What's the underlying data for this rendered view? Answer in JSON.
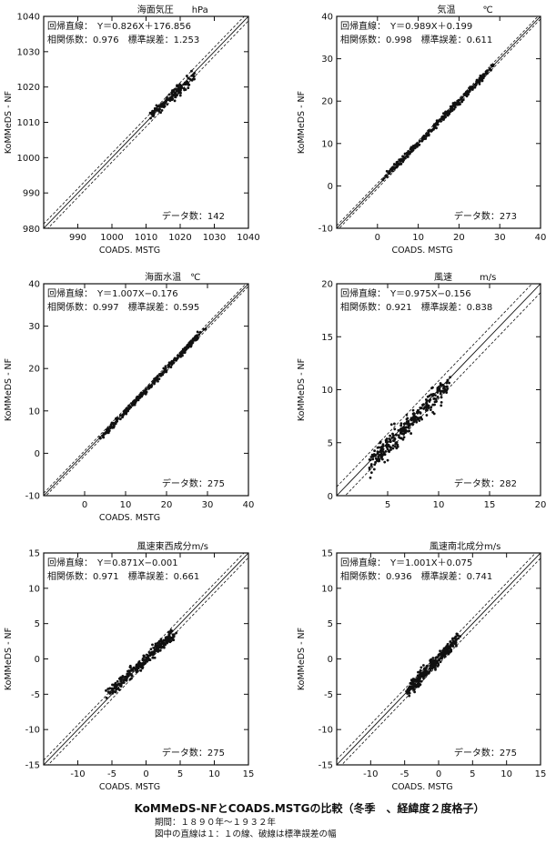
{
  "caption": {
    "title": "KoMMeDS-NFとCOADS.MSTGの比較（冬季　、経緯度２度格子）",
    "period": "期間：１８９０年〜１９３２年",
    "note": "図中の直線は１：１の線、破線は標準誤差の幅"
  },
  "chart_data": [
    {
      "type": "scatter",
      "title": "海面気圧　　hPa",
      "xlabel": "COADS. MSTG",
      "ylabel": "KoMMeDS - NF",
      "xlim": [
        980,
        1040
      ],
      "ylim": [
        980,
        1040
      ],
      "xticks": [
        990,
        1000,
        1010,
        1020,
        1030,
        1040
      ],
      "yticks": [
        990,
        1000,
        1010,
        1020,
        1030,
        1040
      ],
      "xtick_labels": [
        "990",
        "1000",
        "1010",
        "1020",
        "1030",
        "1040"
      ],
      "ytick_labels": [
        "990",
        "1000",
        "1010",
        "1020",
        "1030",
        "1040"
      ],
      "corner_label": "980",
      "regression_label": "回帰直線：　Y＝0.826X＋176.856",
      "correlation_label": "相関係数：0.976　標準誤差：1.253",
      "count_label": "データ数：142",
      "slope": 0.826,
      "intercept": 176.856,
      "r": 0.976,
      "std_error": 1.253,
      "n": 142,
      "point_range": [
        1009,
        1024
      ]
    },
    {
      "type": "scatter",
      "title": "気温　　　℃",
      "xlabel": "COADS. MSTG",
      "ylabel": "KoMMeDS - NF",
      "xlim": [
        -10,
        40
      ],
      "ylim": [
        -10,
        40
      ],
      "xticks": [
        0,
        10,
        20,
        30,
        40
      ],
      "yticks": [
        -10,
        0,
        10,
        20,
        30,
        40
      ],
      "xtick_labels": [
        "0",
        "10",
        "20",
        "30",
        "40"
      ],
      "ytick_labels": [
        "-10",
        "0",
        "10",
        "20",
        "30",
        "40"
      ],
      "corner_label": "",
      "regression_label": "回帰直線：　Y＝0.989X＋0.199",
      "correlation_label": "相関係数：0.998　標準誤差：0.611",
      "count_label": "データ数：273",
      "slope": 0.989,
      "intercept": 0.199,
      "r": 0.998,
      "std_error": 0.611,
      "n": 273,
      "point_range": [
        -2,
        28
      ]
    },
    {
      "type": "scatter",
      "title": "海面水温　℃",
      "xlabel": "COADS. MSTG",
      "ylabel": "KoMMeDS - NF",
      "xlim": [
        -10,
        40
      ],
      "ylim": [
        -10,
        40
      ],
      "xticks": [
        0,
        10,
        20,
        30,
        40
      ],
      "yticks": [
        -10,
        0,
        10,
        20,
        30,
        40
      ],
      "xtick_labels": [
        "0",
        "10",
        "20",
        "30",
        "40"
      ],
      "ytick_labels": [
        "-10",
        "0",
        "10",
        "20",
        "30",
        "40"
      ],
      "corner_label": "",
      "regression_label": "回帰直線：　Y＝1.007X−0.176",
      "correlation_label": "相関係数：0.997　標準誤差：0.595",
      "count_label": "データ数：275",
      "slope": 1.007,
      "intercept": -0.176,
      "r": 0.997,
      "std_error": 0.595,
      "n": 275,
      "point_range": [
        0,
        28
      ]
    },
    {
      "type": "scatter",
      "title": "風速　　　m/s",
      "xlabel": "",
      "ylabel": "KoMMeDS - NF",
      "xlim": [
        0,
        20
      ],
      "ylim": [
        0,
        20
      ],
      "xticks": [
        5,
        10,
        15,
        20
      ],
      "yticks": [
        5,
        10,
        15,
        20
      ],
      "xtick_labels": [
        "5",
        "10",
        "15",
        "20"
      ],
      "ytick_labels": [
        "5",
        "10",
        "15",
        "20"
      ],
      "corner_label": "0",
      "regression_label": "回帰直線：　Y＝0.975X−0.156",
      "correlation_label": "相関係数：0.921　標準誤差：0.838",
      "count_label": "データ数：282",
      "slope": 0.975,
      "intercept": -0.156,
      "r": 0.921,
      "std_error": 0.838,
      "n": 282,
      "point_range": [
        2,
        11
      ]
    },
    {
      "type": "scatter",
      "title": "風速東西成分m/s",
      "xlabel": "COADS. MSTG",
      "ylabel": "KoMMeDS - NF",
      "xlim": [
        -15,
        15
      ],
      "ylim": [
        -15,
        15
      ],
      "xticks": [
        -10,
        -5,
        0,
        5,
        10,
        15
      ],
      "yticks": [
        -15,
        -10,
        -5,
        0,
        5,
        10,
        15
      ],
      "xtick_labels": [
        "-10",
        "-5",
        "0",
        "5",
        "10",
        "15"
      ],
      "ytick_labels": [
        "-15",
        "-10",
        "-5",
        "0",
        "5",
        "10",
        "15"
      ],
      "corner_label": "",
      "regression_label": "回帰直線：　Y＝0.871X−0.001",
      "correlation_label": "相関係数：0.971　標準誤差：0.661",
      "count_label": "データ数：275",
      "slope": 0.871,
      "intercept": -0.001,
      "r": 0.971,
      "std_error": 0.661,
      "n": 275,
      "point_range": [
        -7,
        4
      ]
    },
    {
      "type": "scatter",
      "title": "風速南北成分m/s",
      "xlabel": "COADS. MSTG",
      "ylabel": "KoMMeDS - NF",
      "xlim": [
        -15,
        15
      ],
      "ylim": [
        -15,
        15
      ],
      "xticks": [
        -10,
        -5,
        0,
        5,
        10,
        15
      ],
      "yticks": [
        -15,
        -10,
        -5,
        0,
        5,
        10,
        15
      ],
      "xtick_labels": [
        "-10",
        "-5",
        "0",
        "5",
        "10",
        "15"
      ],
      "ytick_labels": [
        "-15",
        "-10",
        "-5",
        "0",
        "5",
        "10",
        "15"
      ],
      "corner_label": "",
      "regression_label": "回帰直線：　Y＝1.001X＋0.075",
      "correlation_label": "相関係数：0.936　標準誤差：0.741",
      "count_label": "データ数：275",
      "slope": 1.001,
      "intercept": 0.075,
      "r": 0.936,
      "std_error": 0.741,
      "n": 275,
      "point_range": [
        -6,
        3
      ]
    }
  ]
}
